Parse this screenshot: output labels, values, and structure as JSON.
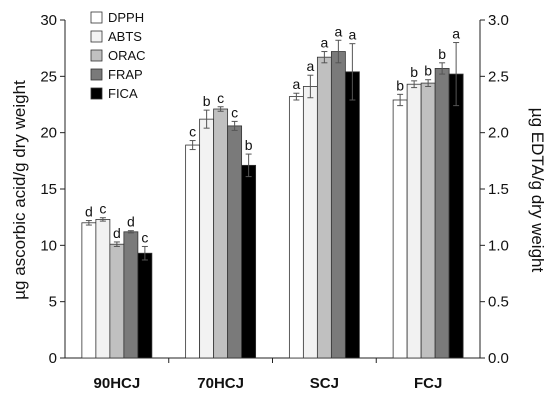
{
  "chart_data": {
    "type": "bar",
    "categories": [
      "90HCJ",
      "70HCJ",
      "SCJ",
      "FCJ"
    ],
    "series": [
      {
        "name": "DPPH",
        "color": "#ffffff",
        "values": [
          12.0,
          18.9,
          23.2,
          22.9
        ],
        "errors": [
          0.2,
          0.4,
          0.3,
          0.5
        ],
        "letters": [
          "d",
          "c",
          "a",
          "b"
        ]
      },
      {
        "name": "ABTS",
        "color": "#f2f2f2",
        "values": [
          12.3,
          21.2,
          24.1,
          24.3
        ],
        "errors": [
          0.15,
          0.8,
          1.0,
          0.3
        ],
        "letters": [
          "c",
          "b",
          "a",
          "b"
        ]
      },
      {
        "name": "ORAC",
        "color": "#c0c0c0",
        "values": [
          10.1,
          22.1,
          26.7,
          24.4
        ],
        "errors": [
          0.2,
          0.2,
          0.5,
          0.3
        ],
        "letters": [
          "d",
          "c",
          "a",
          "b"
        ]
      },
      {
        "name": "FRAP",
        "color": "#7a7a7a",
        "values": [
          11.2,
          20.6,
          27.2,
          25.7
        ],
        "errors": [
          0.1,
          0.4,
          1.0,
          0.5
        ],
        "letters": [
          "d",
          "c",
          "a",
          "b"
        ]
      },
      {
        "name": "FICA",
        "color": "#000000",
        "values": [
          0.93,
          1.71,
          2.54,
          2.52
        ],
        "errors": [
          0.06,
          0.1,
          0.25,
          0.28
        ],
        "letters": [
          "c",
          "b",
          "a",
          "a"
        ],
        "axis": "right"
      }
    ],
    "yleft": {
      "label": "µg ascorbic acid/g dry weight",
      "ylim": [
        0,
        30
      ],
      "ticks": [
        "0",
        "5",
        "10",
        "15",
        "20",
        "25",
        "30"
      ]
    },
    "yright": {
      "label": "µg EDTA/g dry weight",
      "ylim": [
        0,
        3
      ],
      "ticks": [
        "0.0",
        "0.5",
        "1.0",
        "1.5",
        "2.0",
        "2.5",
        "3.0"
      ]
    },
    "legend_position": "top-left",
    "grid": false
  }
}
